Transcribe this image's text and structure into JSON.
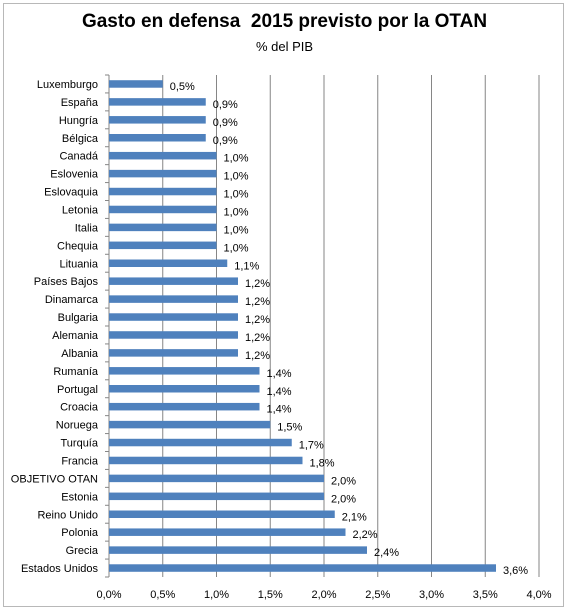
{
  "chart_data": {
    "type": "bar",
    "orientation": "horizontal",
    "title": "Gasto en defensa  2015 previsto por la OTAN",
    "subtitle": "% del PIB",
    "categories": [
      "Luxemburgo",
      "España",
      "Hungría",
      "Bélgica",
      "Canadá",
      "Eslovenia",
      "Eslovaquia",
      "Letonia",
      "Italia",
      "Chequia",
      "Lituania",
      "Países Bajos",
      "Dinamarca",
      "Bulgaria",
      "Alemania",
      "Albania",
      "Rumanía",
      "Portugal",
      "Croacia",
      "Noruega",
      "Turquía",
      "Francia",
      "OBJETIVO OTAN",
      "Estonia",
      "Reino Unido",
      "Polonia",
      "Grecia",
      "Estados Unidos"
    ],
    "values": [
      0.5,
      0.9,
      0.9,
      0.9,
      1.0,
      1.0,
      1.0,
      1.0,
      1.0,
      1.0,
      1.1,
      1.2,
      1.2,
      1.2,
      1.2,
      1.2,
      1.4,
      1.4,
      1.4,
      1.5,
      1.7,
      1.8,
      2.0,
      2.0,
      2.1,
      2.2,
      2.4,
      3.6
    ],
    "data_labels": [
      "0,5%",
      "0,9%",
      "0,9%",
      "0,9%",
      "1,0%",
      "1,0%",
      "1,0%",
      "1,0%",
      "1,0%",
      "1,0%",
      "1,1%",
      "1,2%",
      "1,2%",
      "1,2%",
      "1,2%",
      "1,2%",
      "1,4%",
      "1,4%",
      "1,4%",
      "1,5%",
      "1,7%",
      "1,8%",
      "2,0%",
      "2,0%",
      "2,1%",
      "2,2%",
      "2,4%",
      "3,6%"
    ],
    "xlim": [
      0,
      4.0
    ],
    "xticks": [
      0,
      0.5,
      1.0,
      1.5,
      2.0,
      2.5,
      3.0,
      3.5,
      4.0
    ],
    "xtick_labels": [
      "0,0%",
      "0,5%",
      "1,0%",
      "1,5%",
      "2,0%",
      "2,5%",
      "3,0%",
      "3,5%",
      "4,0%"
    ],
    "grid": true,
    "legend": "none",
    "bar_color": "#4f81bd",
    "grid_color": "#868686"
  }
}
